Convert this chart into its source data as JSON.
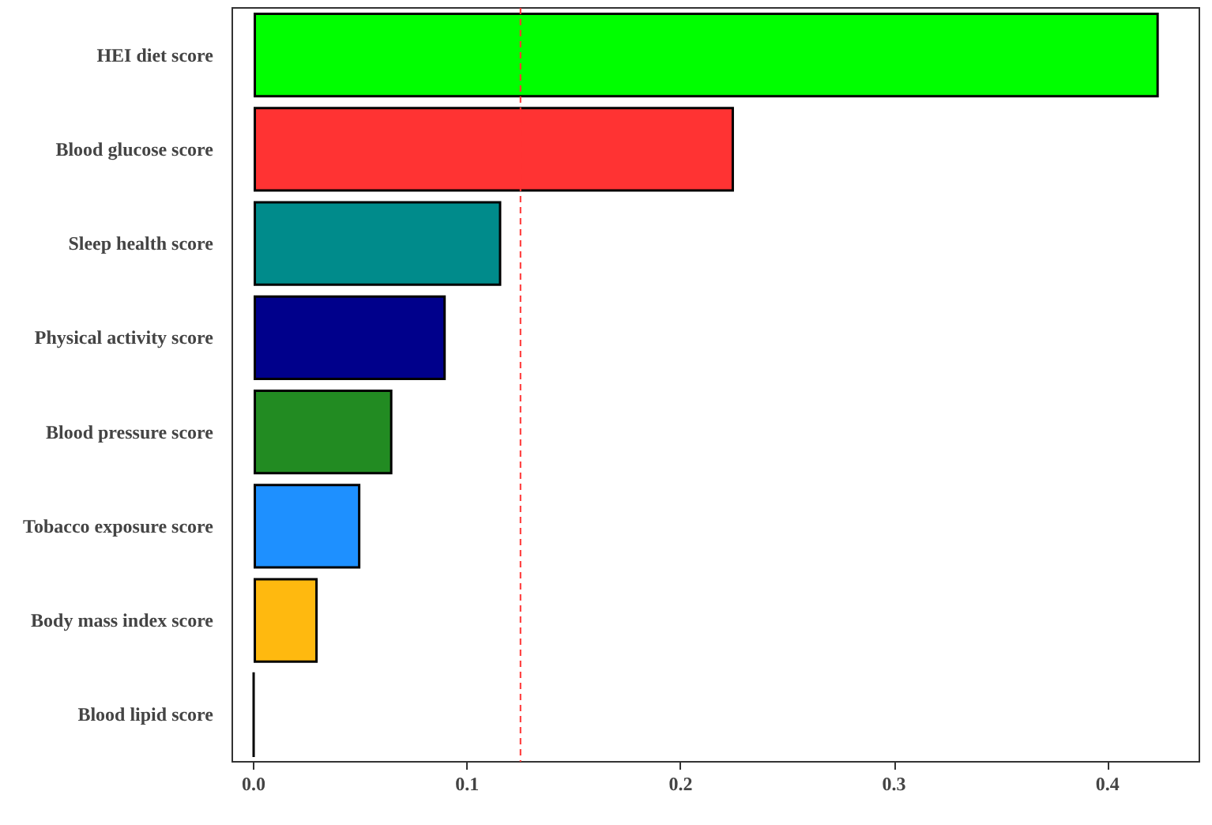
{
  "chart_data": {
    "type": "bar",
    "orientation": "horizontal",
    "categories": [
      "HEI diet score",
      "Blood glucose score",
      "Sleep health score",
      "Physical activity score",
      "Blood pressure score",
      "Tobacco exposure score",
      "Body mass index score",
      "Blood lipid score"
    ],
    "values": [
      0.424,
      0.225,
      0.116,
      0.09,
      0.065,
      0.05,
      0.03,
      0.0
    ],
    "colors": [
      "#00ff00",
      "#ff3333",
      "#008b8b",
      "#00008b",
      "#228b22",
      "#1e90ff",
      "#ffb90f",
      "#000000"
    ],
    "xlim": [
      -0.01,
      0.443
    ],
    "xticks": [
      {
        "value": 0,
        "label": "0.0"
      },
      0.1,
      0.2,
      0.3,
      0.4
    ],
    "ref_lines": [
      {
        "axis": "x",
        "value": 0.125,
        "color": "#ff3333",
        "line_style": "dashed"
      }
    ],
    "grid": false
  }
}
